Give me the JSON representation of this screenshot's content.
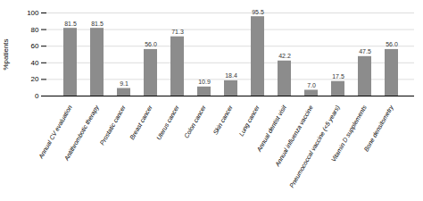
{
  "chart_data": {
    "type": "bar",
    "categories": [
      "Annual CV evaluation",
      "Antithrombotic therapy",
      "Prostatic cancer",
      "Breast cancer",
      "Uterus cancer",
      "Colon cancer",
      "Skin cancer",
      "Lung cancer",
      "Annual dentist visit",
      "Annual influenza vaccine",
      "Pneumococcal vaccine (<5 years)",
      "Vitamin D supplements",
      "Bone densitometry"
    ],
    "values": [
      81.5,
      81.5,
      9.1,
      56.0,
      71.3,
      10.9,
      18.4,
      95.5,
      42.2,
      7.0,
      17.5,
      47.5,
      56.0
    ],
    "value_labels": [
      "81.5",
      "81.5",
      "9.1",
      "56.0",
      "71.3",
      "10.9",
      "18.4",
      "95.5",
      "42.2",
      "7.0",
      "17.5",
      "47.5",
      "56.0"
    ],
    "color": "#8c8c8c",
    "ylabel": "%patients",
    "ylim": [
      0,
      100
    ],
    "yticks": [
      0,
      20,
      40,
      60,
      80,
      100
    ],
    "grid": true,
    "data_labels": true
  }
}
